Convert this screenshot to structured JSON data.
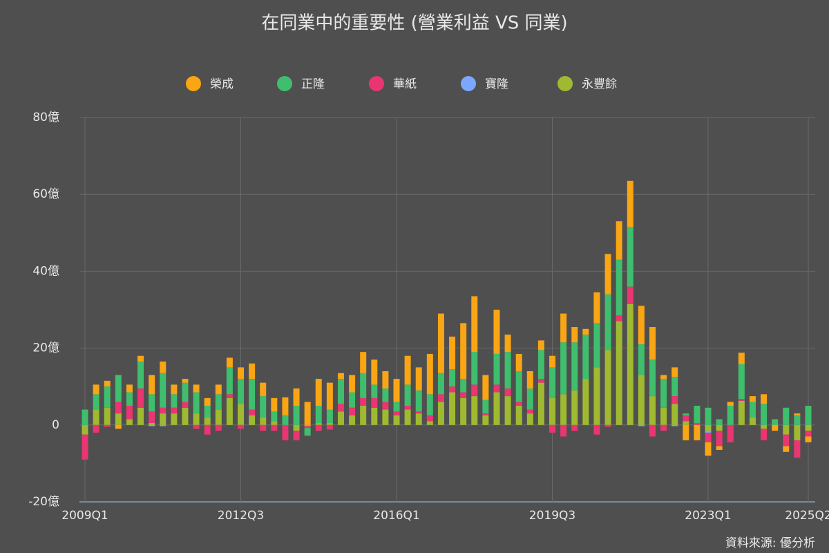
{
  "chart_data": {
    "type": "bar",
    "stacked": true,
    "title": "在同業中的重要性 (營業利益 VS 同業)",
    "source": "資料來源: 優分析",
    "categories": [
      "2009Q1",
      null,
      null,
      null,
      null,
      null,
      null,
      null,
      null,
      null,
      null,
      null,
      null,
      null,
      "2012Q3",
      null,
      null,
      null,
      null,
      null,
      null,
      null,
      null,
      null,
      null,
      null,
      null,
      null,
      "2016Q1",
      null,
      null,
      null,
      null,
      null,
      null,
      null,
      null,
      null,
      null,
      null,
      null,
      null,
      "2019Q3",
      null,
      null,
      null,
      null,
      null,
      null,
      null,
      null,
      null,
      null,
      null,
      null,
      null,
      "2023Q1",
      null,
      null,
      null,
      null,
      null,
      null,
      null,
      null,
      "2025Q2"
    ],
    "series": [
      {
        "name": "榮成",
        "color": "#f9a514",
        "values": [
          0,
          2.5,
          1.5,
          -1,
          2,
          1.5,
          5,
          3,
          2.5,
          1,
          2,
          2,
          2.5,
          2.5,
          3,
          4,
          3.5,
          3.5,
          4.7,
          4.5,
          6,
          7,
          7,
          1.5,
          4.5,
          5.5,
          6.5,
          4.5,
          6,
          7.5,
          6,
          10.5,
          15.5,
          8.5,
          14.5,
          14.5,
          6.5,
          11.5,
          4.5,
          4.5,
          4.5,
          2.5,
          3,
          7.5,
          4,
          1.5,
          8,
          10.5,
          10,
          12,
          10,
          8.5,
          1,
          2.5,
          -4,
          -4,
          -3.5,
          -1,
          1,
          3,
          1.5,
          2.5,
          -1.5,
          -1.5,
          0.5,
          -1.5
        ]
      },
      {
        "name": "正隆",
        "color": "#3fbe6e",
        "values": [
          4,
          4,
          5.5,
          7,
          3.5,
          7,
          4.5,
          9,
          3.5,
          5,
          5.5,
          3,
          4,
          7,
          6.5,
          8,
          5.5,
          2.5,
          2.5,
          5,
          -2,
          4.5,
          3.5,
          6.5,
          4,
          6.5,
          3.5,
          3.5,
          2.5,
          5.5,
          5.5,
          5.5,
          5.5,
          4.5,
          3.5,
          8.5,
          3.5,
          8,
          9.5,
          8,
          5.5,
          7.5,
          8,
          13.5,
          12.5,
          11.5,
          11.5,
          14.5,
          14.5,
          15.5,
          8,
          9.5,
          7.5,
          5,
          0.5,
          4.5,
          4.5,
          1.5,
          5,
          9,
          4,
          5.5,
          1.5,
          4.5,
          2.5,
          5
        ]
      },
      {
        "name": "華紙",
        "color": "#ea3572",
        "values": [
          -6.5,
          -2,
          -0.5,
          3,
          3.5,
          5,
          3,
          1.5,
          1.5,
          1.5,
          -1,
          -2.5,
          -1.5,
          1,
          -1,
          1.5,
          -1.5,
          -1.5,
          -4,
          -2.5,
          -0.5,
          -1.5,
          -1.2,
          2,
          2,
          2,
          2.5,
          2,
          1,
          1,
          0.5,
          1.5,
          2,
          1.5,
          1.5,
          3,
          0.5,
          2,
          2,
          1,
          1,
          1,
          -2,
          -3,
          -1.5,
          0,
          -2.5,
          -0.5,
          1.5,
          4.5,
          0,
          -3,
          -1.5,
          2,
          1.5,
          0.5,
          -2.5,
          -4,
          -4.5,
          0.5,
          0,
          -3,
          0,
          -3,
          -4.5,
          -1.5
        ]
      },
      {
        "name": "寶隆",
        "color": "#7ba7ff",
        "values": [
          0,
          0,
          0,
          0,
          0,
          0,
          -0.3,
          -0.3,
          0,
          0,
          0,
          0,
          0,
          0,
          0,
          0,
          0,
          0,
          0,
          0,
          0,
          0,
          0,
          0,
          0,
          0,
          0,
          0,
          0,
          0,
          0,
          0,
          0,
          0,
          0,
          0,
          0,
          0,
          0,
          0,
          0,
          0,
          0,
          0,
          0,
          0,
          0,
          0,
          0,
          0,
          -0.3,
          0,
          0,
          -0.3,
          0,
          0,
          -0.5,
          0,
          0,
          0.3,
          0,
          0,
          0,
          0,
          0,
          0
        ]
      },
      {
        "name": "永豐餘",
        "color": "#9fba30",
        "values": [
          -2.5,
          4,
          4.5,
          3,
          1.5,
          4.5,
          0.5,
          3,
          3,
          4.5,
          3,
          2,
          4,
          7,
          5.5,
          2.5,
          2,
          1,
          0,
          -1.5,
          -0.3,
          0.5,
          0.5,
          3.5,
          2.5,
          5,
          4.5,
          4,
          2.5,
          4,
          3,
          1,
          6,
          8.5,
          7,
          7.5,
          2.5,
          8.5,
          7.5,
          5,
          3,
          11,
          7,
          8,
          9,
          12,
          15,
          19.5,
          27,
          31.5,
          13,
          7.5,
          4.5,
          5.5,
          1,
          0,
          -1.5,
          -1.5,
          0,
          6,
          2,
          -1,
          0,
          -2.5,
          -4,
          -1.5
        ]
      }
    ],
    "ylim": [
      -20,
      80
    ],
    "yticks": [
      {
        "value": -20,
        "label": "-20億"
      },
      0,
      {
        "value": 20,
        "label": "20億"
      },
      {
        "value": 40,
        "label": "40億"
      },
      {
        "value": 60,
        "label": "60億"
      },
      {
        "value": 80,
        "label": "80億"
      }
    ],
    "grid": true
  }
}
